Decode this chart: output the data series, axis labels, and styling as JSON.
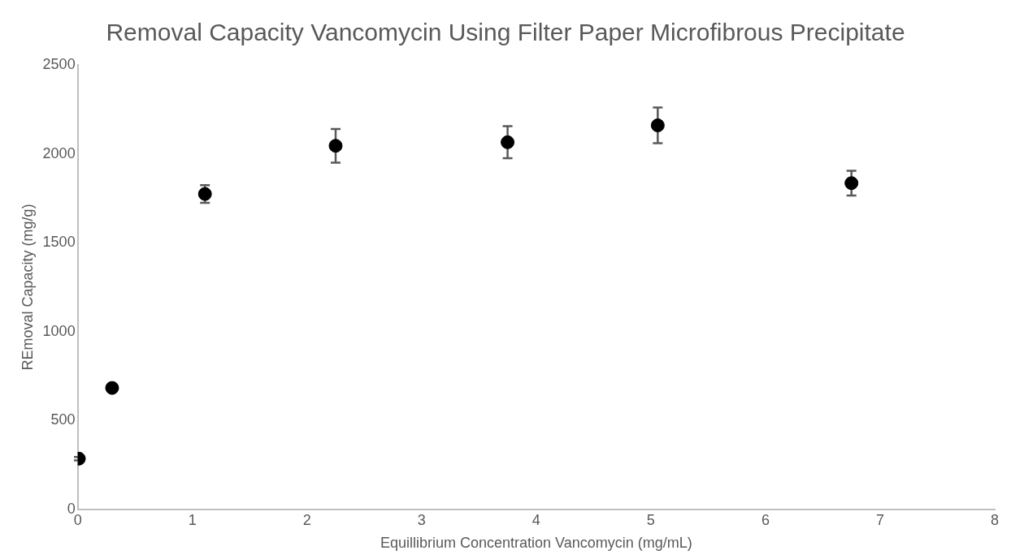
{
  "chart_data": {
    "type": "scatter",
    "title": "Removal Capacity Vancomycin Using Filter Paper Microfibrous Precipitate",
    "xlabel": "Equillibrium Concentration Vancomycin (mg/mL)",
    "ylabel": "REmoval Capacity (mg/g)",
    "x": [
      0.01,
      0.3,
      1.11,
      2.25,
      3.75,
      5.06,
      6.75
    ],
    "series": [
      {
        "color": "#000000",
        "values": [
          285,
          683,
          1774,
          2045,
          2065,
          2160,
          1835
        ],
        "errors": [
          10,
          20,
          50,
          95,
          90,
          100,
          70
        ]
      }
    ],
    "xlim": [
      0,
      8
    ],
    "xticks": [
      0,
      1,
      2,
      3,
      4,
      5,
      6,
      7,
      8
    ],
    "ylim": [
      0,
      2500
    ],
    "yticks": [
      0,
      500,
      1000,
      1500,
      2000,
      2500
    ],
    "grid": false,
    "legend": false,
    "marker": "circle"
  }
}
